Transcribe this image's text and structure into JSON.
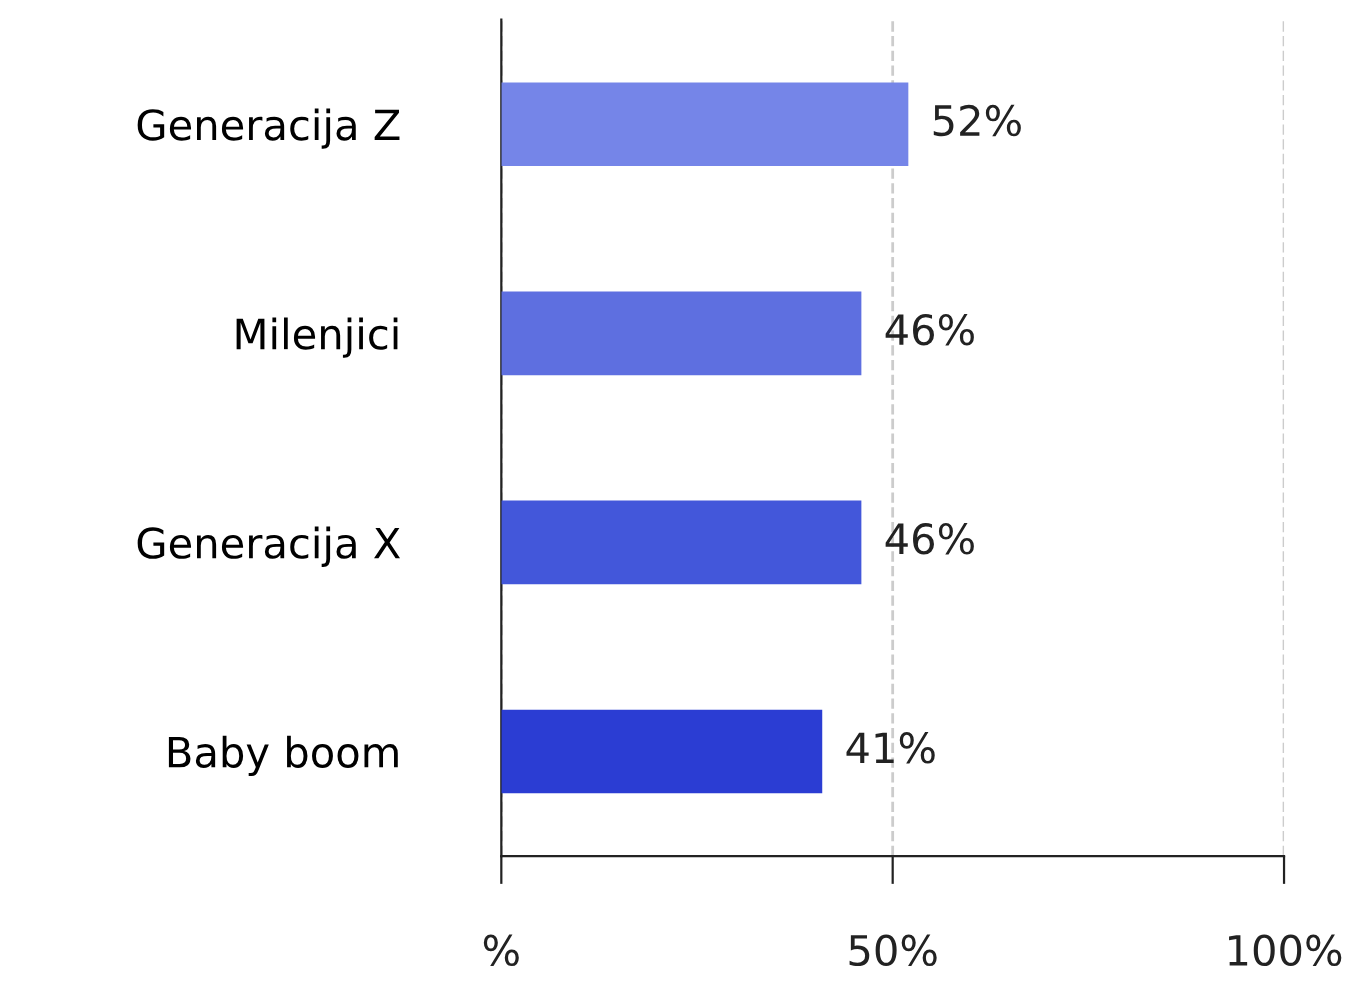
{
  "chart_data": {
    "type": "bar",
    "orientation": "horizontal",
    "categories": [
      "Generacija Z",
      "Milenjici",
      "Generacija X",
      "Baby boom"
    ],
    "values": [
      52,
      46,
      46,
      41
    ],
    "colors": [
      "#7585e8",
      "#5e6fe0",
      "#4357da",
      "#2b3dd3"
    ],
    "value_labels": [
      "52%",
      "46%",
      "46%",
      "41%"
    ],
    "xlim": [
      0,
      100
    ],
    "xticks": [
      {
        "value": 0,
        "label": "%"
      },
      {
        "value": 50,
        "label": "50%"
      },
      {
        "value": 100,
        "label": "100%"
      }
    ],
    "grid": "x",
    "legend": false
  }
}
